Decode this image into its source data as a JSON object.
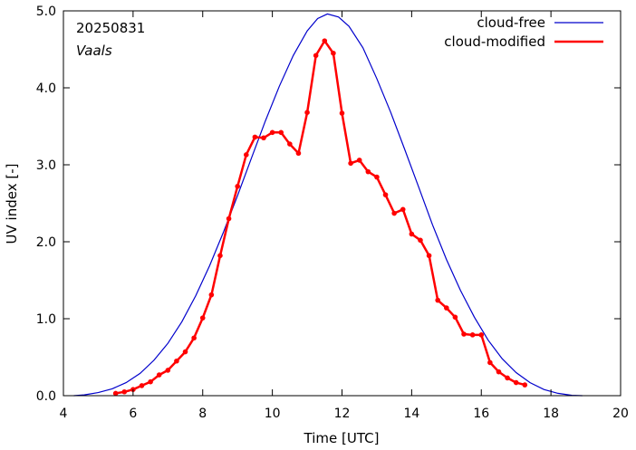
{
  "chart_data": {
    "type": "line",
    "xlabel": "Time  [UTC]",
    "ylabel": "UV index  [-]",
    "xlim": [
      4,
      20
    ],
    "ylim": [
      0,
      5
    ],
    "xticks": [
      4,
      6,
      8,
      10,
      12,
      14,
      16,
      18,
      20
    ],
    "yticks": [
      0,
      1,
      2,
      3,
      4,
      5
    ],
    "xtick_labels": [
      "4",
      "6",
      "8",
      "10",
      "12",
      "14",
      "16",
      "18",
      "20"
    ],
    "ytick_labels": [
      "0.0",
      "1.0",
      "2.0",
      "3.0",
      "4.0",
      "5.0"
    ],
    "grid": false,
    "legend_position": "top-right",
    "annotations": [
      "20250831",
      "Vaals"
    ],
    "series": [
      {
        "name": "cloud-free",
        "color": "#0000cc",
        "marker": "none",
        "x": [
          4.3,
          4.6,
          5.0,
          5.4,
          5.8,
          6.2,
          6.6,
          7.0,
          7.4,
          7.8,
          8.2,
          8.6,
          9.0,
          9.4,
          9.8,
          10.2,
          10.6,
          11.0,
          11.3,
          11.58,
          11.9,
          12.2,
          12.6,
          13.0,
          13.4,
          13.8,
          14.2,
          14.6,
          15.0,
          15.4,
          15.8,
          16.2,
          16.6,
          17.0,
          17.4,
          17.8,
          18.2,
          18.6,
          18.9
        ],
        "y": [
          0.0,
          0.01,
          0.04,
          0.09,
          0.17,
          0.29,
          0.46,
          0.68,
          0.96,
          1.3,
          1.69,
          2.13,
          2.6,
          3.09,
          3.57,
          4.02,
          4.42,
          4.74,
          4.9,
          4.96,
          4.92,
          4.8,
          4.52,
          4.12,
          3.68,
          3.2,
          2.71,
          2.22,
          1.77,
          1.37,
          1.02,
          0.72,
          0.48,
          0.3,
          0.17,
          0.08,
          0.03,
          0.005,
          0.0
        ]
      },
      {
        "name": "cloud-modified",
        "color": "#ff0000",
        "marker": "dot",
        "x": [
          5.5,
          5.75,
          6.0,
          6.25,
          6.5,
          6.75,
          7.0,
          7.25,
          7.5,
          7.75,
          8.0,
          8.25,
          8.5,
          8.75,
          9.0,
          9.25,
          9.5,
          9.75,
          10.0,
          10.25,
          10.5,
          10.75,
          11.0,
          11.25,
          11.5,
          11.75,
          12.0,
          12.25,
          12.5,
          12.75,
          13.0,
          13.25,
          13.5,
          13.75,
          14.0,
          14.25,
          14.5,
          14.75,
          15.0,
          15.25,
          15.5,
          15.75,
          16.0,
          16.25,
          16.5,
          16.75,
          17.0,
          17.25
        ],
        "y": [
          0.03,
          0.05,
          0.08,
          0.13,
          0.18,
          0.27,
          0.33,
          0.45,
          0.57,
          0.75,
          1.01,
          1.31,
          1.82,
          2.3,
          2.72,
          3.13,
          3.36,
          3.35,
          3.42,
          3.42,
          3.27,
          3.15,
          3.68,
          4.42,
          4.61,
          4.45,
          3.67,
          3.02,
          3.06,
          2.91,
          2.84,
          2.61,
          2.37,
          2.42,
          2.1,
          2.02,
          1.82,
          1.24,
          1.14,
          1.02,
          0.8,
          0.79,
          0.79,
          0.43,
          0.31,
          0.23,
          0.17,
          0.14
        ]
      }
    ]
  }
}
